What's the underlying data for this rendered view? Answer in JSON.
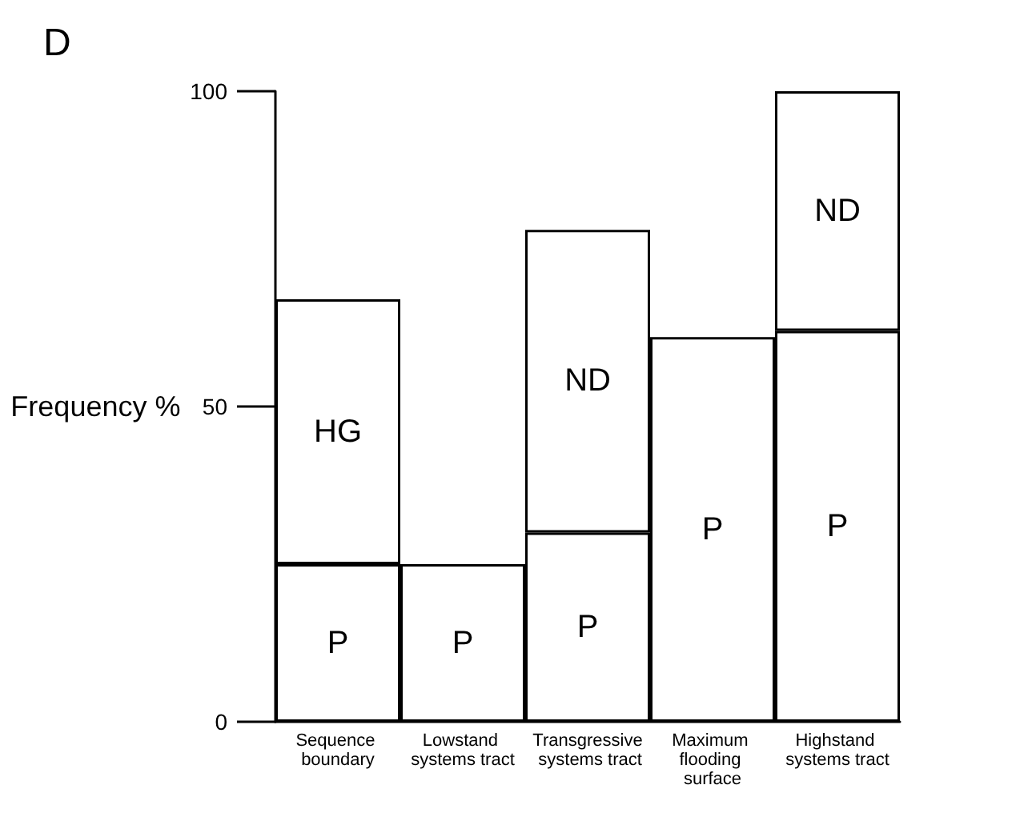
{
  "chart_data": {
    "type": "bar",
    "title": "D",
    "ylabel": "Frequency %",
    "stacked": true,
    "grid": false,
    "legend": false,
    "categories": [
      "Sequence boundary",
      "Lowstand systems tract",
      "Transgressive systems tract",
      "Maximum flooding surface",
      "Highstand systems tract"
    ],
    "ylim": [
      0,
      100
    ],
    "yticks": [
      0,
      50,
      100
    ],
    "series": [
      {
        "name": "P",
        "color": "#ffffff",
        "values": [
          25,
          25,
          30,
          61,
          62
        ]
      },
      {
        "name": "HG",
        "color": "#ffffff",
        "values": [
          42,
          null,
          null,
          null,
          null
        ]
      },
      {
        "name": "ND",
        "color": "#ffffff",
        "values": [
          null,
          null,
          48,
          null,
          38
        ]
      }
    ]
  }
}
